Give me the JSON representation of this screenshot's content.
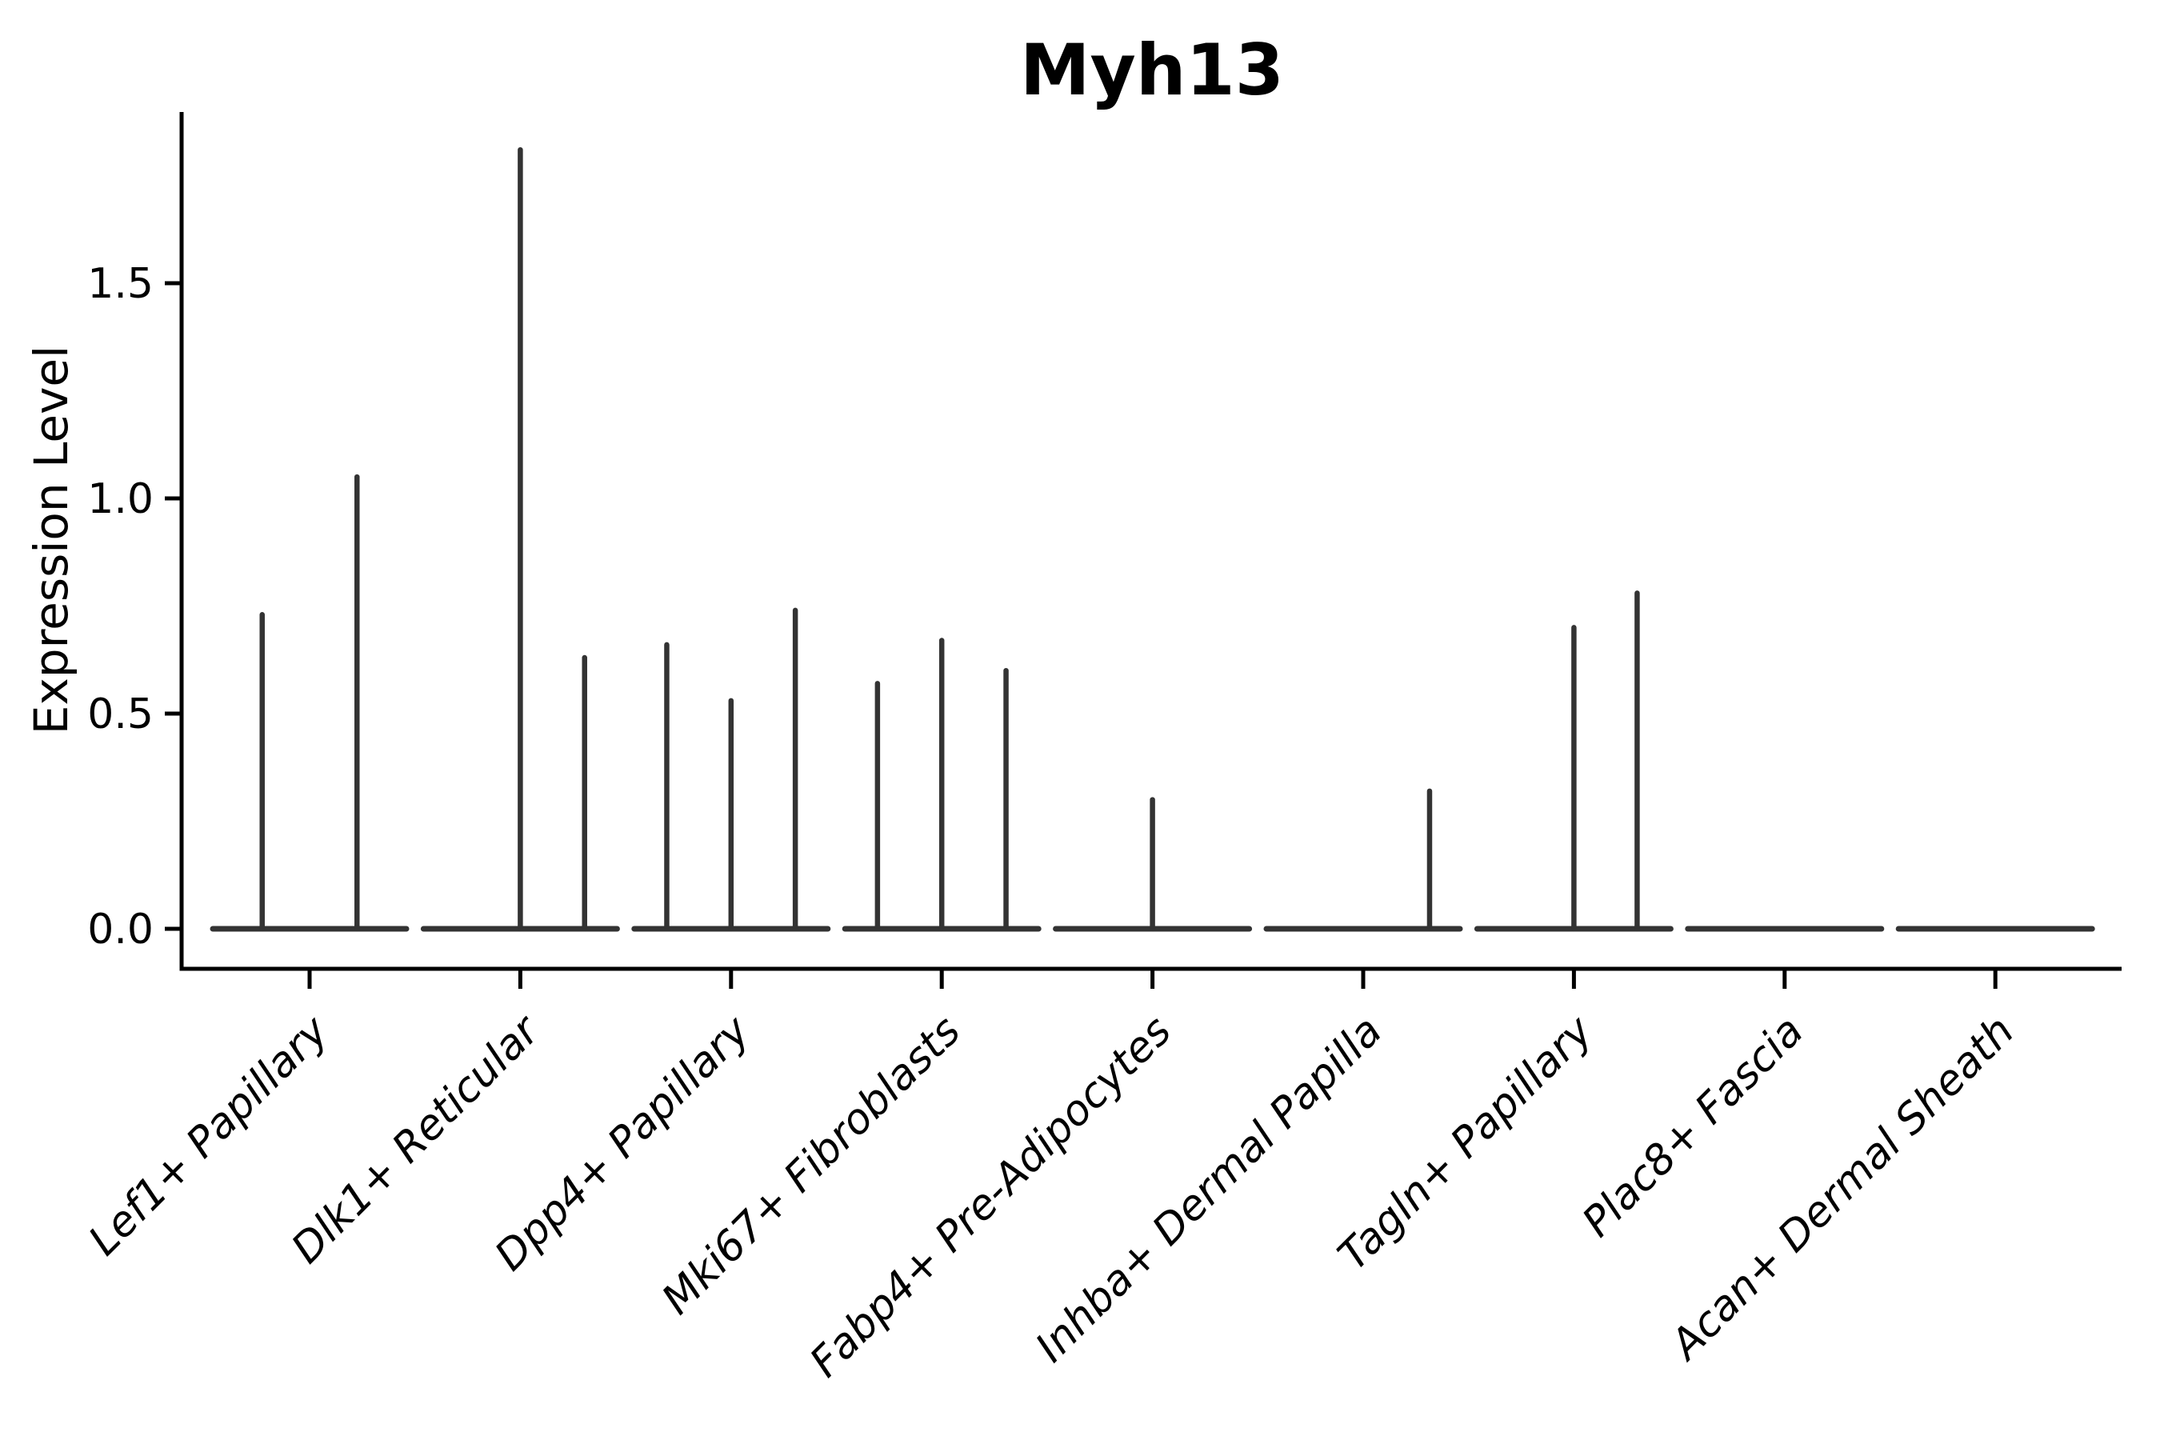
{
  "chart": {
    "title": "Myh13",
    "ylabel": "Expression Level",
    "ytick_labels": [
      "0.0",
      "0.5",
      "1.0",
      "1.5"
    ]
  },
  "chart_data": {
    "type": "violin",
    "title": "Myh13",
    "xlabel": "",
    "ylabel": "Expression Level",
    "ylim": [
      -0.09,
      1.9
    ],
    "yticks": [
      0.0,
      0.5,
      1.0,
      1.5
    ],
    "grid": false,
    "legend": "none",
    "description": "Violin plot of Myh13 expression; each category shows a flat violin collapsed at 0 with thin density spikes for the few expressing cells (spike value = max expression height, offset = horizontal position within category as fraction of slot width).",
    "categories": [
      "Lef1+ Papillary",
      "Dlk1+ Reticular",
      "Dpp4+ Papillary",
      "Mki67+ Fibroblasts",
      "Fabp4+ Pre-Adipocytes",
      "Inhba+ Dermal Papilla",
      "Tagln+ Papillary",
      "Plac8+ Fascia",
      "Acan+ Dermal Sheath"
    ],
    "violins": [
      {
        "category": "Lef1+ Papillary",
        "baseline_value": 0.0,
        "spikes": [
          {
            "offset": -0.225,
            "value": 0.73
          },
          {
            "offset": 0.225,
            "value": 1.05
          }
        ]
      },
      {
        "category": "Dlk1+ Reticular",
        "baseline_value": 0.0,
        "spikes": [
          {
            "offset": 0.0,
            "value": 1.81
          },
          {
            "offset": 0.305,
            "value": 0.63
          }
        ]
      },
      {
        "category": "Dpp4+ Papillary",
        "baseline_value": 0.0,
        "spikes": [
          {
            "offset": -0.305,
            "value": 0.66
          },
          {
            "offset": 0.0,
            "value": 0.53
          },
          {
            "offset": 0.305,
            "value": 0.74
          }
        ]
      },
      {
        "category": "Mki67+ Fibroblasts",
        "baseline_value": 0.0,
        "spikes": [
          {
            "offset": -0.305,
            "value": 0.57
          },
          {
            "offset": 0.0,
            "value": 0.67
          },
          {
            "offset": 0.305,
            "value": 0.6
          }
        ]
      },
      {
        "category": "Fabp4+ Pre-Adipocytes",
        "baseline_value": 0.0,
        "spikes": [
          {
            "offset": 0.0,
            "value": 0.3
          }
        ]
      },
      {
        "category": "Inhba+ Dermal Papilla",
        "baseline_value": 0.0,
        "spikes": [
          {
            "offset": 0.315,
            "value": 0.32
          }
        ]
      },
      {
        "category": "Tagln+ Papillary",
        "baseline_value": 0.0,
        "spikes": [
          {
            "offset": 0.0,
            "value": 0.7
          },
          {
            "offset": 0.3,
            "value": 0.78
          }
        ]
      },
      {
        "category": "Plac8+ Fascia",
        "baseline_value": 0.0,
        "spikes": []
      },
      {
        "category": "Acan+ Dermal Sheath",
        "baseline_value": 0.0,
        "spikes": []
      }
    ]
  },
  "colors": {
    "background": "#ffffff",
    "violin": "#333333",
    "axis": "#000000",
    "text": "#000000"
  }
}
